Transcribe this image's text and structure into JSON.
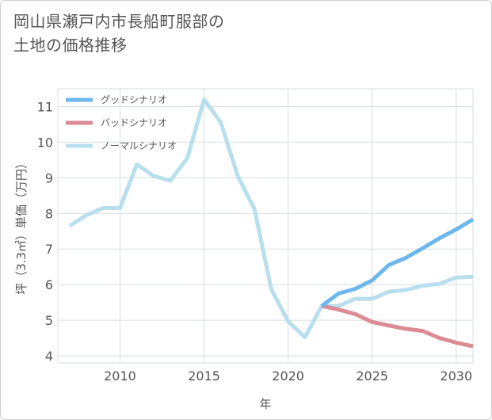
{
  "title_lines": [
    "岡山県瀬戸内市長船町服部の",
    "土地の価格推移"
  ],
  "chart_data": {
    "type": "line",
    "title": "岡山県瀬戸内市長船町服部の土地の価格推移",
    "xlabel": "年",
    "ylabel": "坪（3.3㎡）単価（万円）",
    "xlim": [
      2006.3,
      2031
    ],
    "ylim": [
      3.8,
      11.5
    ],
    "xticks": [
      2010,
      2015,
      2020,
      2025,
      2030
    ],
    "yticks": [
      4,
      5,
      6,
      7,
      8,
      9,
      10,
      11
    ],
    "grid": true,
    "legend_position": "top-left",
    "series": [
      {
        "name": "グッドシナリオ",
        "color": "#6cb8ec",
        "x": [
          2022,
          2023,
          2024,
          2025,
          2026,
          2027,
          2028,
          2029,
          2030,
          2031
        ],
        "values": [
          5.4,
          5.75,
          5.88,
          6.12,
          6.55,
          6.75,
          7.02,
          7.3,
          7.55,
          7.83
        ]
      },
      {
        "name": "バッドシナリオ",
        "color": "#dc8a94",
        "x": [
          2022,
          2023,
          2024,
          2025,
          2026,
          2027,
          2028,
          2029,
          2030,
          2031
        ],
        "values": [
          5.4,
          5.3,
          5.17,
          4.95,
          4.85,
          4.76,
          4.7,
          4.5,
          4.37,
          4.27
        ]
      },
      {
        "name": "ノーマルシナリオ",
        "color": "#b7dfee",
        "x": [
          2007,
          2008,
          2009,
          2010,
          2011,
          2012,
          2013,
          2014,
          2015,
          2016,
          2017,
          2018,
          2019,
          2020,
          2021,
          2022,
          2023,
          2024,
          2025,
          2026,
          2027,
          2028,
          2029,
          2030,
          2031
        ],
        "values": [
          7.65,
          7.95,
          8.15,
          8.15,
          9.38,
          9.05,
          8.92,
          9.55,
          11.2,
          10.55,
          9.05,
          8.12,
          5.87,
          4.97,
          4.52,
          5.4,
          5.4,
          5.6,
          5.6,
          5.8,
          5.85,
          5.97,
          6.02,
          6.2,
          6.22
        ]
      }
    ]
  }
}
